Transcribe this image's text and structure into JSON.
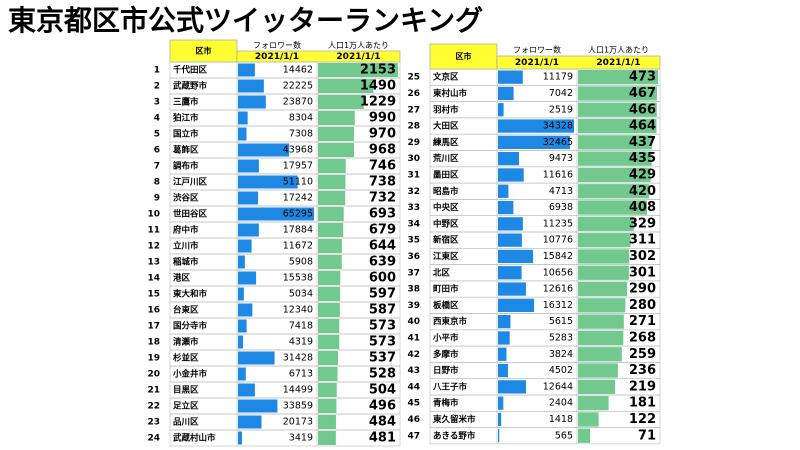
{
  "title": "東京都区市公式ツイッターランキング",
  "tables": [
    {
      "header": {
        "region": "区市",
        "followers": "フォロワー数",
        "per10k": "人口1万人あたり"
      },
      "dates": {
        "followers": "2021/1/1",
        "per10k": "2021/1/1"
      },
      "rows": [
        {
          "rank": 1,
          "name": "千代田区",
          "followers": 14462,
          "per10k": 2153
        },
        {
          "rank": 2,
          "name": "武蔵野市",
          "followers": 22225,
          "per10k": 1490
        },
        {
          "rank": 3,
          "name": "三鷹市",
          "followers": 23870,
          "per10k": 1229
        },
        {
          "rank": 4,
          "name": "狛江市",
          "followers": 8304,
          "per10k": 990
        },
        {
          "rank": 5,
          "name": "国立市",
          "followers": 7308,
          "per10k": 970
        },
        {
          "rank": 6,
          "name": "葛飾区",
          "followers": 43968,
          "per10k": 968
        },
        {
          "rank": 7,
          "name": "調布市",
          "followers": 17957,
          "per10k": 746
        },
        {
          "rank": 8,
          "name": "江戸川区",
          "followers": 51110,
          "per10k": 738
        },
        {
          "rank": 9,
          "name": "渋谷区",
          "followers": 17242,
          "per10k": 732
        },
        {
          "rank": 10,
          "name": "世田谷区",
          "followers": 65295,
          "per10k": 693
        },
        {
          "rank": 11,
          "name": "府中市",
          "followers": 17884,
          "per10k": 679
        },
        {
          "rank": 12,
          "name": "立川市",
          "followers": 11672,
          "per10k": 644
        },
        {
          "rank": 13,
          "name": "稲城市",
          "followers": 5908,
          "per10k": 639
        },
        {
          "rank": 14,
          "name": "港区",
          "followers": 15538,
          "per10k": 600
        },
        {
          "rank": 15,
          "name": "東大和市",
          "followers": 5034,
          "per10k": 597
        },
        {
          "rank": 16,
          "name": "台東区",
          "followers": 12340,
          "per10k": 587
        },
        {
          "rank": 17,
          "name": "国分寺市",
          "followers": 7418,
          "per10k": 573
        },
        {
          "rank": 18,
          "name": "清瀬市",
          "followers": 4319,
          "per10k": 573
        },
        {
          "rank": 19,
          "name": "杉並区",
          "followers": 31428,
          "per10k": 537
        },
        {
          "rank": 20,
          "name": "小金井市",
          "followers": 6713,
          "per10k": 528
        },
        {
          "rank": 21,
          "name": "目黒区",
          "followers": 14499,
          "per10k": 504
        },
        {
          "rank": 22,
          "name": "足立区",
          "followers": 33859,
          "per10k": 496
        },
        {
          "rank": 23,
          "name": "品川区",
          "followers": 20173,
          "per10k": 484
        },
        {
          "rank": 24,
          "name": "武蔵村山市",
          "followers": 3419,
          "per10k": 481
        }
      ]
    },
    {
      "header": {
        "region": "区市",
        "followers": "フォロワー数",
        "per10k": "人口1万人あたり"
      },
      "dates": {
        "followers": "2021/1/1",
        "per10k": "2021/1/1"
      },
      "rows": [
        {
          "rank": 25,
          "name": "文京区",
          "followers": 11179,
          "per10k": 473
        },
        {
          "rank": 26,
          "name": "東村山市",
          "followers": 7042,
          "per10k": 467
        },
        {
          "rank": 27,
          "name": "羽村市",
          "followers": 2519,
          "per10k": 466
        },
        {
          "rank": 28,
          "name": "大田区",
          "followers": 34328,
          "per10k": 464
        },
        {
          "rank": 29,
          "name": "練馬区",
          "followers": 32465,
          "per10k": 437
        },
        {
          "rank": 30,
          "name": "荒川区",
          "followers": 9473,
          "per10k": 435
        },
        {
          "rank": 31,
          "name": "墨田区",
          "followers": 11616,
          "per10k": 429
        },
        {
          "rank": 32,
          "name": "昭島市",
          "followers": 4713,
          "per10k": 420
        },
        {
          "rank": 33,
          "name": "中央区",
          "followers": 6938,
          "per10k": 408
        },
        {
          "rank": 34,
          "name": "中野区",
          "followers": 11235,
          "per10k": 329
        },
        {
          "rank": 35,
          "name": "新宿区",
          "followers": 10776,
          "per10k": 311
        },
        {
          "rank": 36,
          "name": "江東区",
          "followers": 15842,
          "per10k": 302
        },
        {
          "rank": 37,
          "name": "北区",
          "followers": 10656,
          "per10k": 301
        },
        {
          "rank": 38,
          "name": "町田市",
          "followers": 12616,
          "per10k": 290
        },
        {
          "rank": 39,
          "name": "板橋区",
          "followers": 16312,
          "per10k": 280
        },
        {
          "rank": 40,
          "name": "西東京市",
          "followers": 5615,
          "per10k": 271
        },
        {
          "rank": 41,
          "name": "小平市",
          "followers": 5283,
          "per10k": 268
        },
        {
          "rank": 42,
          "name": "多摩市",
          "followers": 3824,
          "per10k": 259
        },
        {
          "rank": 43,
          "name": "日野市",
          "followers": 4502,
          "per10k": 236
        },
        {
          "rank": 44,
          "name": "八王子市",
          "followers": 12644,
          "per10k": 219
        },
        {
          "rank": 45,
          "name": "青梅市",
          "followers": 2404,
          "per10k": 181
        },
        {
          "rank": 46,
          "name": "東久留米市",
          "followers": 1418,
          "per10k": 122
        },
        {
          "rank": 47,
          "name": "あきる野市",
          "followers": 565,
          "per10k": 71
        }
      ]
    }
  ]
}
